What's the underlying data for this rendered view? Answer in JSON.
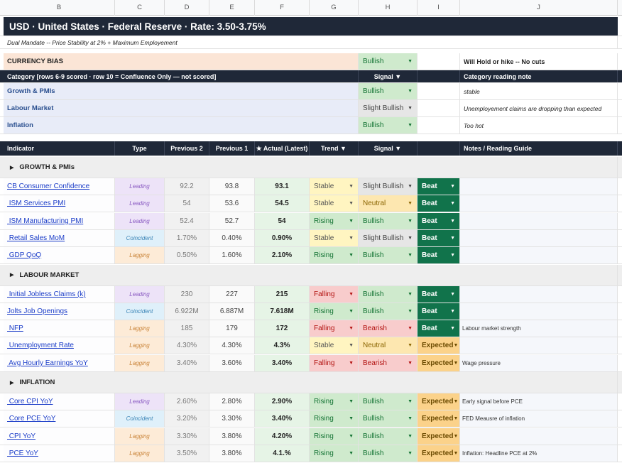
{
  "columns": [
    "B",
    "C",
    "D",
    "E",
    "F",
    "G",
    "H",
    "I",
    "J"
  ],
  "header": {
    "title": "USD  ·  United States  ·  Federal Reserve  ·  Rate: 3.50-3.75%",
    "mandate": "Dual Mandate -- Price Stability at 2% + Maximum Employement"
  },
  "bias": {
    "label": "CURRENCY BIAS",
    "signal": "Bullish",
    "note": "Will Hold or hike  -- No cuts"
  },
  "category_header": {
    "label": "Category  [rows 6-9 scored  ·  row 10 = Confluence Only — not scored]",
    "signal": "Signal ▼",
    "note": "Category reading note"
  },
  "categories": [
    {
      "name": "Growth & PMIs",
      "signal": "Bullish",
      "note": "stable"
    },
    {
      "name": "Labour Market",
      "signal": "Slight Bullish",
      "note": "Unemployement claims are dropping than expected"
    },
    {
      "name": "Inflation",
      "signal": "Bullish",
      "note": "Too hot"
    }
  ],
  "table_header": {
    "indicator": "Indicator",
    "type": "Type",
    "prev2": "Previous 2",
    "prev1": "Previous 1",
    "actual": "★ Actual (Latest)",
    "trend": "Trend ▼",
    "signal": "Signal ▼",
    "notes": "Notes  /  Reading Guide"
  },
  "sections": [
    {
      "title": "GROWTH & PMIs",
      "rows": [
        {
          "name": "CB Consumer Confidence",
          "type": "Leading",
          "prev2": "92.2",
          "prev1": "93.8",
          "actual": "93.1",
          "trend": "Stable",
          "signal": "Slight Bullish",
          "result": "Beat",
          "note": ""
        },
        {
          "name": " ISM Services PMI",
          "type": "Leading",
          "prev2": "54",
          "prev1": "53.6",
          "actual": "54.5",
          "trend": "Stable",
          "signal": "Neutral",
          "result": "Beat",
          "note": ""
        },
        {
          "name": " ISM Manufacturing PMI",
          "type": "Leading",
          "prev2": "52.4",
          "prev1": "52.7",
          "actual": "54",
          "trend": "Rising",
          "signal": "Bullish",
          "result": "Beat",
          "note": ""
        },
        {
          "name": " Retail Sales MoM",
          "type": "Coincident",
          "prev2": "1.70%",
          "prev1": "0.40%",
          "actual": "0.90%",
          "trend": "Stable",
          "signal": "Slight Bullish",
          "result": "Beat",
          "note": ""
        },
        {
          "name": " GDP QoQ",
          "type": "Lagging",
          "prev2": "0.50%",
          "prev1": "1.60%",
          "actual": "2.10%",
          "trend": "Rising",
          "signal": "Bullish",
          "result": "Beat",
          "note": ""
        }
      ]
    },
    {
      "title": "LABOUR MARKET",
      "rows": [
        {
          "name": " Initial Jobless Claims (k)",
          "type": "Leading",
          "prev2": "230",
          "prev1": "227",
          "actual": "215",
          "trend": "Falling",
          "signal": "Bullish",
          "result": "Beat",
          "note": ""
        },
        {
          "name": "Jolts Job Openings",
          "type": "Coincident",
          "prev2": "6.922M",
          "prev1": "6.887M",
          "actual": "7.618M",
          "trend": "Rising",
          "signal": "Bullish",
          "result": "Beat",
          "note": ""
        },
        {
          "name": " NFP",
          "type": "Lagging",
          "prev2": "185",
          "prev1": "179",
          "actual": "172",
          "trend": "Falling",
          "signal": "Bearish",
          "result": "Beat",
          "note": "Labour market strength"
        },
        {
          "name": " Unemployment Rate",
          "type": "Lagging",
          "prev2": "4.30%",
          "prev1": "4.30%",
          "actual": "4.3%",
          "trend": "Stable",
          "signal": "Neutral",
          "result": "Expected",
          "note": ""
        },
        {
          "name": " Avg Hourly Earnings YoY",
          "type": "Lagging",
          "prev2": "3.40%",
          "prev1": "3.60%",
          "actual": "3.40%",
          "trend": "Falling",
          "signal": "Bearish",
          "result": "Expected",
          "note": "Wage pressure"
        }
      ]
    },
    {
      "title": "INFLATION",
      "rows": [
        {
          "name": " Core CPI YoY",
          "type": "Leading",
          "prev2": "2.60%",
          "prev1": "2.80%",
          "actual": "2.90%",
          "trend": "Rising",
          "signal": "Bullish",
          "result": "Expected",
          "note": "Early signal before PCE"
        },
        {
          "name": " Core PCE YoY",
          "type": "Coincident",
          "prev2": "3.20%",
          "prev1": "3.30%",
          "actual": "3.40%",
          "trend": "Rising",
          "signal": "Bullish",
          "result": "Expected",
          "note": "FED Meausre of inflation"
        },
        {
          "name": " CPI YoY",
          "type": "Lagging",
          "prev2": "3.30%",
          "prev1": "3.80%",
          "actual": "4.20%",
          "trend": "Rising",
          "signal": "Bullish",
          "result": "Expected",
          "note": ""
        },
        {
          "name": " PCE YoY",
          "type": "Lagging",
          "prev2": "3.50%",
          "prev1": "3.80%",
          "actual": "4.1.%",
          "trend": "Rising",
          "signal": "Bullish",
          "result": "Expected",
          "note": "Inflation: Headline PCE at 2%"
        }
      ]
    }
  ],
  "colors": {
    "dark_header": "#1f2838",
    "beat": "#11734b",
    "expected": "#fbd28a",
    "bullish": "#cfeacd",
    "bearish": "#f8cccc"
  },
  "icons": {
    "dropdown": "triangle-down-icon",
    "section_toggle": "triangle-right-icon"
  }
}
